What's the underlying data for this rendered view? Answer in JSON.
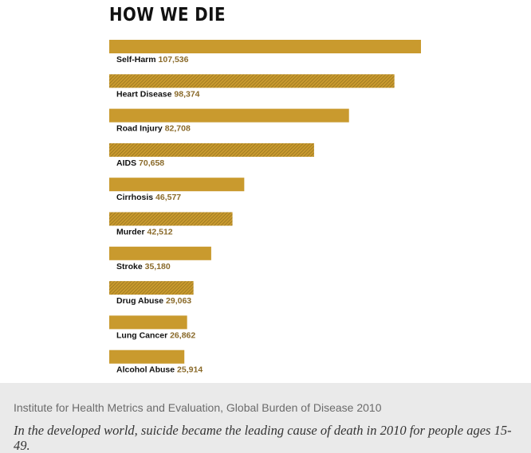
{
  "chart_data": {
    "type": "bar",
    "orientation": "horizontal",
    "title": "HOW WE DIE",
    "categories": [
      "Self-Harm",
      "Heart Disease",
      "Road Injury",
      "AIDS",
      "Cirrhosis",
      "Murder",
      "Stroke",
      "Drug Abuse",
      "Lung Cancer",
      "Alcohol Abuse"
    ],
    "values": [
      107536,
      98374,
      82708,
      70658,
      46577,
      42512,
      35180,
      29063,
      26862,
      25914
    ],
    "value_labels": [
      "107,536",
      "98,374",
      "82,708",
      "70,658",
      "46,577",
      "42,512",
      "35,180",
      "29,063",
      "26,862",
      "25,914"
    ],
    "patterns": [
      "solid",
      "hatched",
      "solid",
      "hatched",
      "solid",
      "hatched",
      "solid",
      "hatched",
      "solid",
      "solid"
    ],
    "xlim": [
      0,
      107536
    ],
    "grid": false,
    "legend": "none",
    "colors": {
      "bar": "#c99a2e",
      "hatch_line": "#8a6a1c",
      "value_text": "#8a6a2a",
      "label_text": "#111111"
    }
  },
  "source": "Institute for Health Metrics and Evaluation, Global Burden of Disease 2010",
  "caption": "In the developed world, suicide became the leading cause of death in 2010 for people ages 15-49."
}
